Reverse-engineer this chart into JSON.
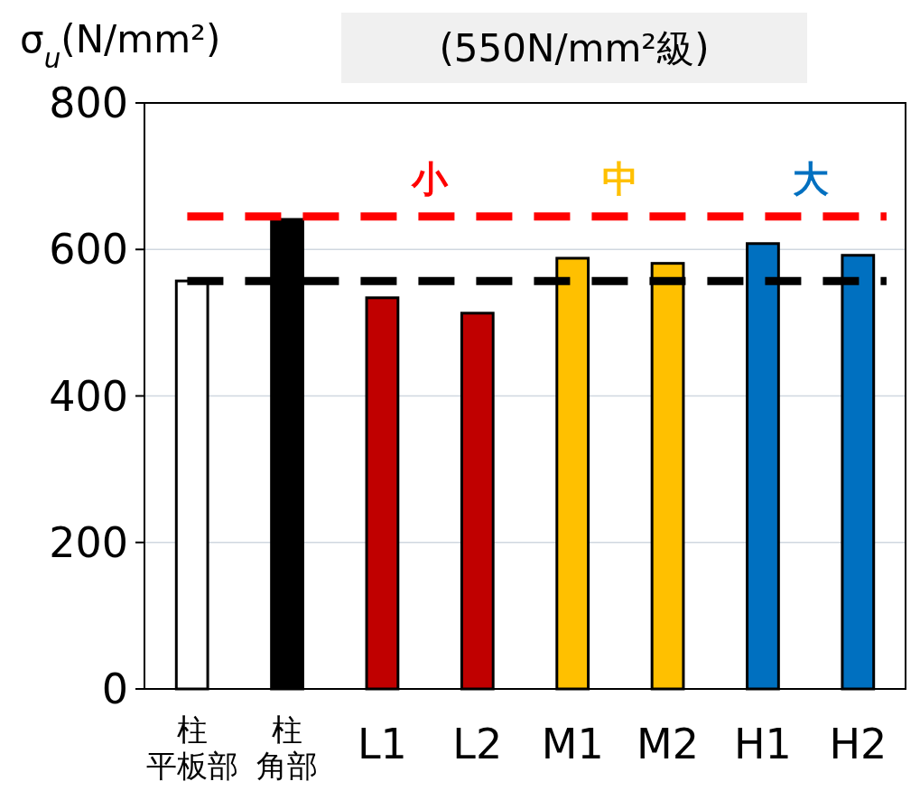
{
  "chart_data": {
    "type": "bar",
    "title": "(550N/mm²級)",
    "ylabel": "σ$_{u}$(N/mm²)",
    "categories": [
      "柱平板部",
      "柱角部",
      "L1",
      "L2",
      "M1",
      "M2",
      "H1",
      "H2"
    ],
    "values": [
      557,
      641,
      534,
      513,
      588,
      581,
      608,
      592
    ],
    "colors": [
      "#ffffff",
      "#000000",
      "#c00000",
      "#c00000",
      "#ffc000",
      "#ffc000",
      "#0070c0",
      "#0070c0"
    ],
    "ylim": [
      0,
      800
    ],
    "yticks": [
      0,
      200,
      400,
      600,
      800
    ],
    "grid": "y",
    "ref_lines": [
      {
        "axis": "y",
        "value": 557,
        "color": "#000000",
        "line_style": "dashed"
      },
      {
        "axis": "y",
        "value": 645,
        "color": "#ff0000",
        "line_style": "dashed"
      }
    ],
    "annotations": [
      "小",
      "中",
      "大"
    ]
  }
}
